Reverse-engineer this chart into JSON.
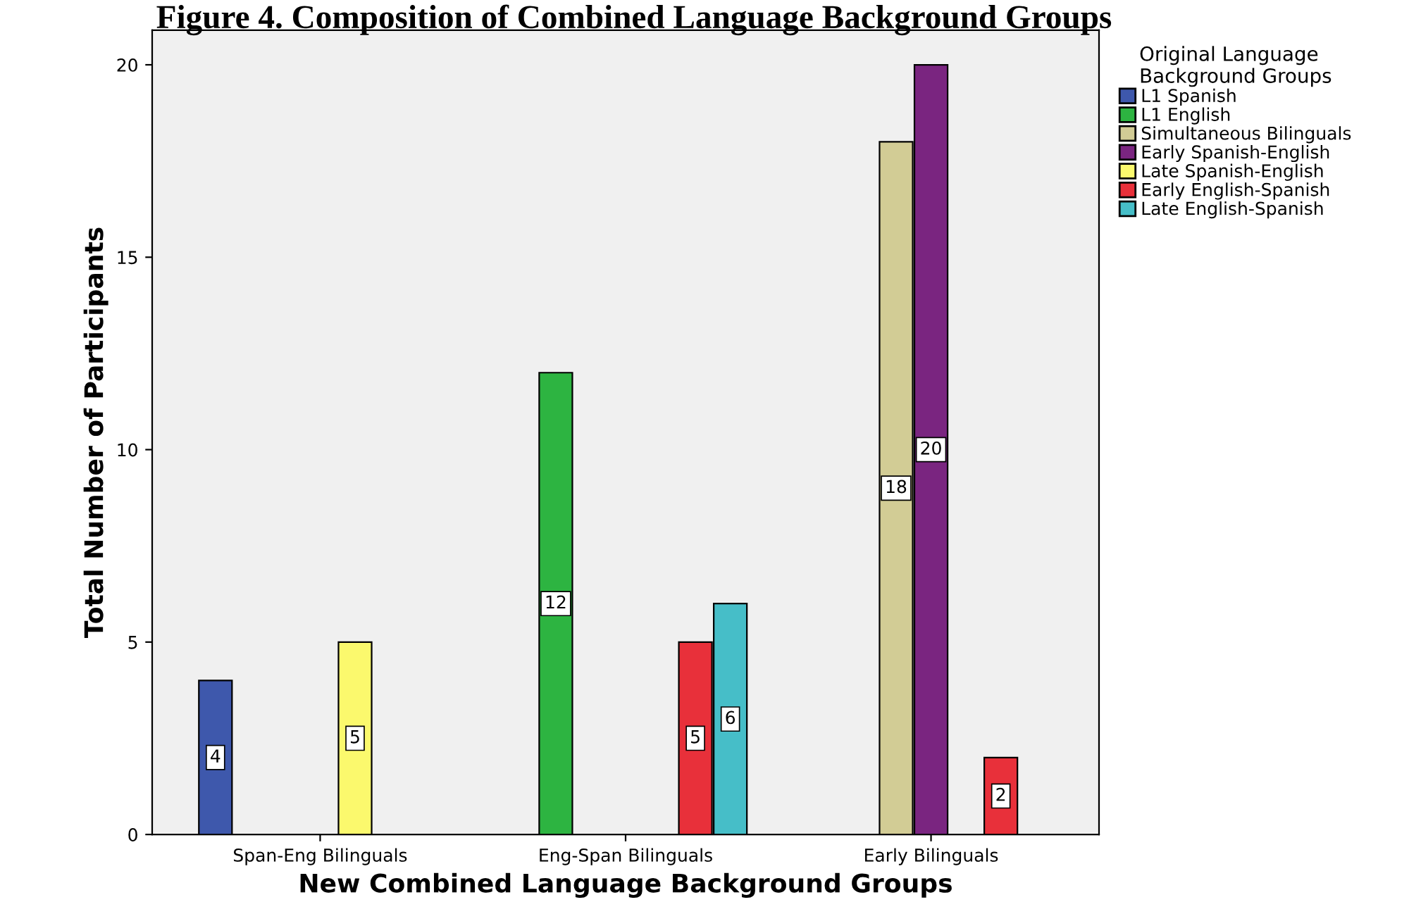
{
  "chart_data": {
    "type": "bar",
    "title": "Figure 4. Composition of Combined Language Background Groups",
    "xlabel": "New Combined Language Background Groups",
    "ylabel": "Total Number of Participants",
    "legend_title": "Original Language\nBackground Groups",
    "legend": "right",
    "categories": [
      "Span-Eng Bilinguals",
      "Eng-Span Bilinguals",
      "Early Bilinguals"
    ],
    "ylim": [
      0,
      20.9
    ],
    "yticks": [
      0,
      5,
      10,
      15,
      20
    ],
    "grid": false,
    "data_labels": true,
    "series": [
      {
        "name": "L1 Spanish",
        "color": "#3e58ac",
        "values": [
          4,
          null,
          null
        ]
      },
      {
        "name": "L1 English",
        "color": "#2db441",
        "values": [
          null,
          12,
          null
        ]
      },
      {
        "name": "Simultaneous Bilinguals",
        "color": "#d2cc95",
        "values": [
          null,
          null,
          18
        ]
      },
      {
        "name": "Early Spanish-English",
        "color": "#7a2580",
        "values": [
          null,
          null,
          20
        ]
      },
      {
        "name": "Late Spanish-English",
        "color": "#fbf96d",
        "values": [
          5,
          null,
          null
        ]
      },
      {
        "name": "Early English-Spanish",
        "color": "#e8303a",
        "values": [
          null,
          5,
          2
        ]
      },
      {
        "name": "Late English-Spanish",
        "color": "#46bec8",
        "values": [
          null,
          6,
          null
        ]
      }
    ]
  }
}
